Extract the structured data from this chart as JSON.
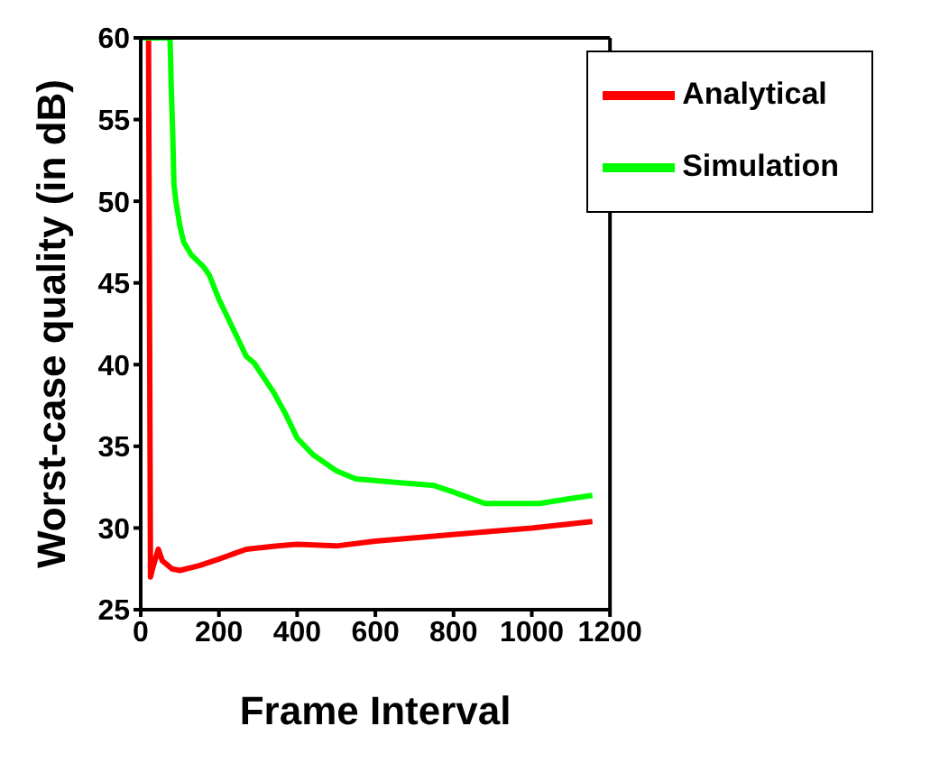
{
  "chart_data": {
    "type": "line",
    "xlabel": "Frame Interval",
    "ylabel": "Worst-case quality (in dB)",
    "xlim": [
      0,
      1200
    ],
    "xticks": [
      0,
      200,
      400,
      600,
      800,
      1000,
      1200
    ],
    "ylim": [
      25,
      60
    ],
    "yticks": [
      25,
      30,
      35,
      40,
      45,
      50,
      55,
      60
    ],
    "legend": "top right",
    "grid": false,
    "series": [
      {
        "name": "Analytical",
        "color": "#ff0000",
        "x": [
          20,
          25,
          30,
          45,
          55,
          80,
          100,
          150,
          200,
          270,
          350,
          400,
          500,
          600,
          750,
          900,
          1000,
          1155
        ],
        "values": [
          60,
          27,
          27.5,
          28.7,
          28,
          27.5,
          27.4,
          27.7,
          28.1,
          28.7,
          28.9,
          29,
          28.9,
          29.2,
          29.5,
          29.8,
          30,
          30.4
        ]
      },
      {
        "name": "Simulation",
        "color": "#00ff00",
        "x": [
          0,
          75,
          78,
          82,
          85,
          90,
          100,
          110,
          130,
          160,
          175,
          200,
          240,
          270,
          290,
          340,
          370,
          400,
          440,
          500,
          550,
          650,
          750,
          800,
          880,
          950,
          1020,
          1100,
          1155
        ],
        "values": [
          60,
          60,
          57,
          54,
          51,
          50,
          48.5,
          47.5,
          46.7,
          46,
          45.5,
          44,
          42,
          40.5,
          40.1,
          38.3,
          37,
          35.5,
          34.5,
          33.5,
          33,
          32.8,
          32.6,
          32.2,
          31.5,
          31.5,
          31.5,
          31.8,
          32
        ]
      }
    ]
  }
}
